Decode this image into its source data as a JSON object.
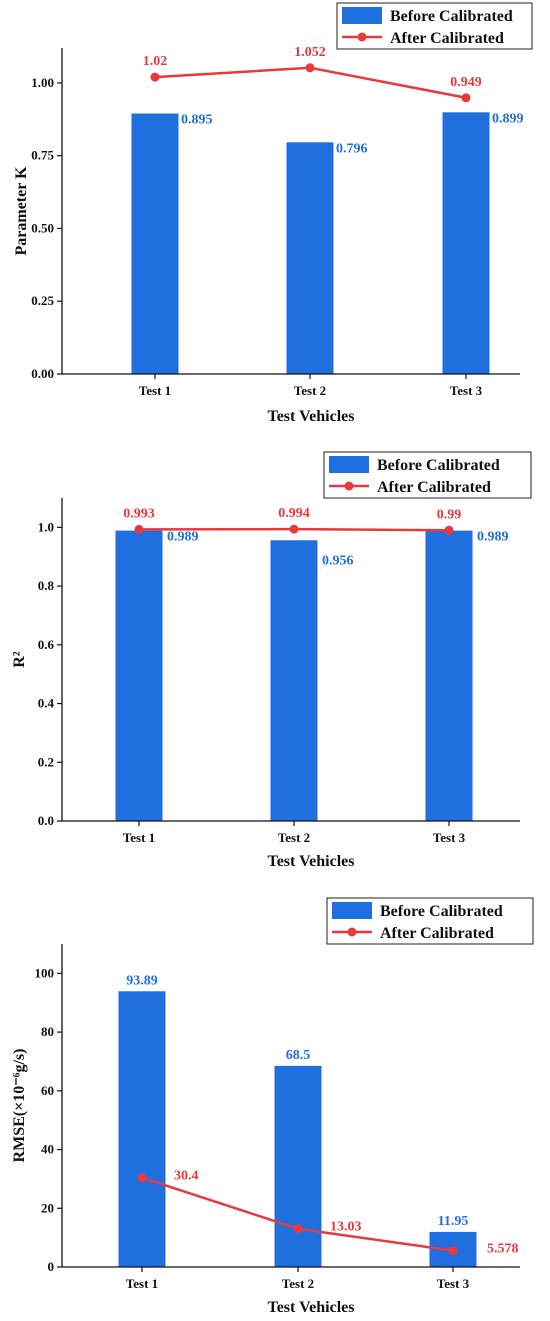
{
  "legend": {
    "before_label": "Before Calibrated",
    "after_label": "After Calibrated"
  },
  "colors": {
    "bar": "#1f6fde",
    "line": "#e8393d",
    "bar_label": "#1f6fde",
    "line_label": "#e8393d"
  },
  "chart_data": [
    {
      "type": "bar",
      "categories": [
        "Test 1",
        "Test 2",
        "Test 3"
      ],
      "xlabel": "Test Vehicles",
      "ylabel": "Parameter K",
      "ylim": [
        0,
        1.12
      ],
      "yticks": [
        "0.00",
        "0.25",
        "0.50",
        "0.75",
        "1.00"
      ],
      "series": [
        {
          "name": "Before Calibrated",
          "kind": "bar",
          "values": [
            0.895,
            0.796,
            0.899
          ],
          "labels": [
            "0.895",
            "0.796",
            "0.899"
          ]
        },
        {
          "name": "After Calibrated",
          "kind": "line",
          "values": [
            1.02,
            1.052,
            0.949
          ],
          "labels": [
            "1.02",
            "1.052",
            "0.949"
          ]
        }
      ]
    },
    {
      "type": "bar",
      "categories": [
        "Test 1",
        "Test 2",
        "Test 3"
      ],
      "xlabel": "Test Vehicles",
      "ylabel": "R²",
      "ylim": [
        0,
        1.1
      ],
      "yticks": [
        "0.0",
        "0.2",
        "0.4",
        "0.6",
        "0.8",
        "1.0"
      ],
      "series": [
        {
          "name": "Before Calibrated",
          "kind": "bar",
          "values": [
            0.989,
            0.956,
            0.989
          ],
          "labels": [
            "0.989",
            "0.956",
            "0.989"
          ]
        },
        {
          "name": "After Calibrated",
          "kind": "line",
          "values": [
            0.993,
            0.994,
            0.99
          ],
          "labels": [
            "0.993",
            "0.994",
            "0.99"
          ]
        }
      ]
    },
    {
      "type": "bar",
      "categories": [
        "Test 1",
        "Test 2",
        "Test 3"
      ],
      "xlabel": "Test Vehicles",
      "ylabel": "RMSE(×10⁻⁶g/s)",
      "ylim": [
        0,
        110
      ],
      "yticks": [
        "0",
        "20",
        "40",
        "60",
        "80",
        "100"
      ],
      "series": [
        {
          "name": "Before Calibrated",
          "kind": "bar",
          "values": [
            93.89,
            68.5,
            11.95
          ],
          "labels": [
            "93.89",
            "68.5",
            "11.95"
          ]
        },
        {
          "name": "After Calibrated",
          "kind": "line",
          "values": [
            30.4,
            13.03,
            5.578
          ],
          "labels": [
            "30.4",
            "13.03",
            "5.578"
          ]
        }
      ]
    }
  ]
}
